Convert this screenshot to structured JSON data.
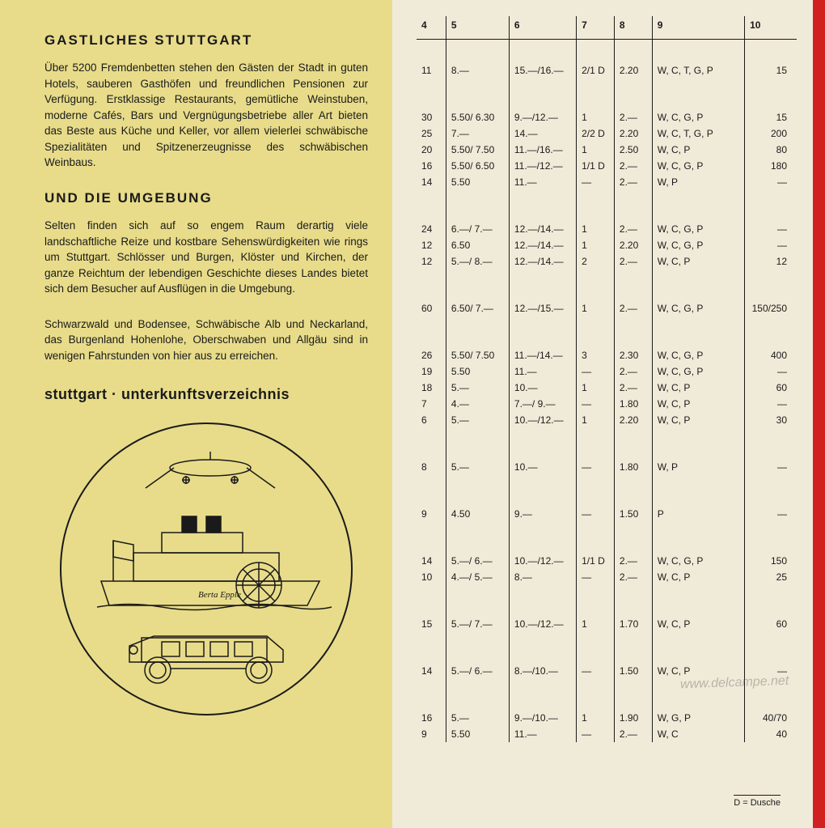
{
  "left": {
    "heading1": "GASTLICHES STUTTGART",
    "para1": "Über 5200 Fremdenbetten stehen den Gästen der Stadt in guten Hotels, sauberen Gasthöfen und freundlichen Pensionen zur Verfügung. Erstklassige Restaurants, gemütliche Weinstuben, moderne Cafés, Bars und Vergnügungsbetriebe aller Art bieten das Beste aus Küche und Keller, vor allem vielerlei schwäbische Spezialitäten und Spitzenerzeugnisse des schwäbischen Weinbaus.",
    "heading2": "UND DIE UMGEBUNG",
    "para2": "Selten finden sich auf so engem Raum derartig viele landschaftliche Reize und kostbare Sehenswürdigkeiten wie rings um Stuttgart. Schlösser und Burgen, Klöster und Kirchen, der ganze Reichtum der lebendigen Geschichte dieses Landes bietet sich dem Besucher auf Ausflügen in die Umgebung.",
    "para3": "Schwarzwald und Bodensee, Schwäbische Alb und Neckarland, das Burgenland Hohenlohe, Oberschwaben und Allgäu sind in wenigen Fahrstunden von hier aus zu erreichen.",
    "subtitle": "stuttgart · unterkunftsverzeichnis",
    "illustration": {
      "boat_label": "Berta Epple",
      "description": "circular line drawing with airplane, paddle steamer boat, and vintage automobile"
    }
  },
  "table": {
    "headers": [
      "4",
      "5",
      "6",
      "7",
      "8",
      "9",
      "10"
    ],
    "groups": [
      [
        {
          "c4": "11",
          "c5": "8.—",
          "c6": "15.—/16.—",
          "c7": "2/1 D",
          "c8": "2.20",
          "c9": "W, C, T, G, P",
          "c10": "15"
        }
      ],
      [
        {
          "c4": "30",
          "c5": "5.50/ 6.30",
          "c6": "9.—/12.—",
          "c7": "1",
          "c8": "2.—",
          "c9": "W, C, G, P",
          "c10": "15"
        },
        {
          "c4": "25",
          "c5": "7.—",
          "c6": "14.—",
          "c7": "2/2 D",
          "c8": "2.20",
          "c9": "W, C, T, G, P",
          "c10": "200"
        },
        {
          "c4": "20",
          "c5": "5.50/ 7.50",
          "c6": "11.—/16.—",
          "c7": "1",
          "c8": "2.50",
          "c9": "W, C, P",
          "c10": "80"
        },
        {
          "c4": "16",
          "c5": "5.50/ 6.50",
          "c6": "11.—/12.—",
          "c7": "1/1 D",
          "c8": "2.—",
          "c9": "W, C, G, P",
          "c10": "180"
        },
        {
          "c4": "14",
          "c5": "5.50",
          "c6": "11.—",
          "c7": "—",
          "c8": "2.—",
          "c9": "W, P",
          "c10": "—"
        }
      ],
      [
        {
          "c4": "24",
          "c5": "6.—/ 7.—",
          "c6": "12.—/14.—",
          "c7": "1",
          "c8": "2.—",
          "c9": "W, C, G, P",
          "c10": "—"
        },
        {
          "c4": "12",
          "c5": "6.50",
          "c6": "12.—/14.—",
          "c7": "1",
          "c8": "2.20",
          "c9": "W, C, G, P",
          "c10": "—"
        },
        {
          "c4": "12",
          "c5": "5.—/ 8.—",
          "c6": "12.—/14.—",
          "c7": "2",
          "c8": "2.—",
          "c9": "W, C, P",
          "c10": "12"
        }
      ],
      [
        {
          "c4": "60",
          "c5": "6.50/ 7.—",
          "c6": "12.—/15.—",
          "c7": "1",
          "c8": "2.—",
          "c9": "W, C, G, P",
          "c10": "150/250"
        }
      ],
      [
        {
          "c4": "26",
          "c5": "5.50/ 7.50",
          "c6": "11.—/14.—",
          "c7": "3",
          "c8": "2.30",
          "c9": "W, C, G, P",
          "c10": "400"
        },
        {
          "c4": "19",
          "c5": "5.50",
          "c6": "11.—",
          "c7": "—",
          "c8": "2.—",
          "c9": "W, C, G, P",
          "c10": "—"
        },
        {
          "c4": "18",
          "c5": "5.—",
          "c6": "10.—",
          "c7": "1",
          "c8": "2.—",
          "c9": "W, C, P",
          "c10": "60"
        },
        {
          "c4": "7",
          "c5": "4.—",
          "c6": "7.—/ 9.—",
          "c7": "—",
          "c8": "1.80",
          "c9": "W, C, P",
          "c10": "—"
        },
        {
          "c4": "6",
          "c5": "5.—",
          "c6": "10.—/12.—",
          "c7": "1",
          "c8": "2.20",
          "c9": "W, C, P",
          "c10": "30"
        }
      ],
      [
        {
          "c4": "8",
          "c5": "5.—",
          "c6": "10.—",
          "c7": "—",
          "c8": "1.80",
          "c9": "W, P",
          "c10": "—"
        }
      ],
      [
        {
          "c4": "9",
          "c5": "4.50",
          "c6": "9.—",
          "c7": "—",
          "c8": "1.50",
          "c9": "P",
          "c10": "—"
        }
      ],
      [
        {
          "c4": "14",
          "c5": "5.—/ 6.—",
          "c6": "10.—/12.—",
          "c7": "1/1 D",
          "c8": "2.—",
          "c9": "W, C, G, P",
          "c10": "150"
        },
        {
          "c4": "10",
          "c5": "4.—/ 5.—",
          "c6": "8.—",
          "c7": "—",
          "c8": "2.—",
          "c9": "W, C, P",
          "c10": "25"
        }
      ],
      [
        {
          "c4": "15",
          "c5": "5.—/ 7.—",
          "c6": "10.—/12.—",
          "c7": "1",
          "c8": "1.70",
          "c9": "W, C, P",
          "c10": "60"
        }
      ],
      [
        {
          "c4": "14",
          "c5": "5.—/ 6.—",
          "c6": "8.—/10.—",
          "c7": "—",
          "c8": "1.50",
          "c9": "W, C, P",
          "c10": "—"
        }
      ],
      [
        {
          "c4": "16",
          "c5": "5.—",
          "c6": "9.—/10.—",
          "c7": "1",
          "c8": "1.90",
          "c9": "W, G, P",
          "c10": "40/70"
        },
        {
          "c4": "9",
          "c5": "5.50",
          "c6": "11.—",
          "c7": "—",
          "c8": "2.—",
          "c9": "W, C",
          "c10": "40"
        }
      ]
    ],
    "footer": "D = Dusche"
  },
  "watermark": "www.delcampe.net",
  "colors": {
    "left_bg": "#e8dc8a",
    "right_bg": "#f0ead8",
    "text": "#1a1a1a",
    "red_edge": "#d02020",
    "border": "#1a1a1a"
  }
}
